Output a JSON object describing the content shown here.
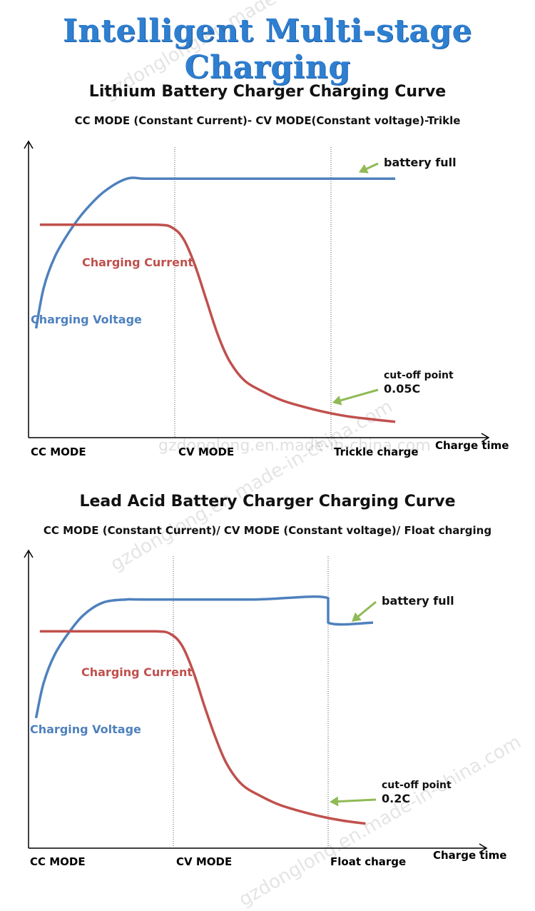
{
  "main_title": "Intelligent Multi-stage Charging",
  "watermark": "gzdonglong.en.made-in-china.com",
  "colors": {
    "voltage": "#4f81bd",
    "current": "#c0504d",
    "arrow": "#8fba55",
    "title": "#2f7fd0"
  },
  "chart_data": [
    {
      "type": "line",
      "title": "Lithium Battery Charger Charging Curve",
      "subtitle": "CC MODE (Constant Current)- CV MODE(Constant voltage)-Trikle",
      "xlabel": "Charge time",
      "phases": [
        "CC MODE",
        "CV MODE",
        "Trickle charge"
      ],
      "series": [
        {
          "name": "Charging Voltage",
          "color": "#4f81bd",
          "points": [
            [
              0.02,
              0.62
            ],
            [
              0.04,
              0.48
            ],
            [
              0.07,
              0.37
            ],
            [
              0.11,
              0.28
            ],
            [
              0.15,
              0.21
            ],
            [
              0.2,
              0.145
            ],
            [
              0.26,
              0.1
            ],
            [
              0.31,
              0.1
            ],
            [
              0.4,
              0.1
            ],
            [
              0.6,
              0.1
            ],
            [
              0.8,
              0.1
            ],
            [
              0.97,
              0.1
            ]
          ]
        },
        {
          "name": "Charging Current",
          "color": "#c0504d",
          "points": [
            [
              0.03,
              0.26
            ],
            [
              0.2,
              0.26
            ],
            [
              0.34,
              0.26
            ],
            [
              0.38,
              0.27
            ],
            [
              0.41,
              0.31
            ],
            [
              0.44,
              0.4
            ],
            [
              0.47,
              0.52
            ],
            [
              0.5,
              0.64
            ],
            [
              0.53,
              0.73
            ],
            [
              0.57,
              0.8
            ],
            [
              0.62,
              0.84
            ],
            [
              0.67,
              0.87
            ],
            [
              0.72,
              0.89
            ],
            [
              0.78,
              0.91
            ],
            [
              0.84,
              0.925
            ],
            [
              0.9,
              0.935
            ],
            [
              0.97,
              0.945
            ]
          ]
        }
      ],
      "annotations": [
        {
          "lines": [
            "battery full"
          ],
          "target": [
            0.87,
            0.08
          ]
        },
        {
          "lines": [
            "cut-off point",
            "0.05C"
          ],
          "target": [
            0.8,
            0.88
          ]
        }
      ]
    },
    {
      "type": "line",
      "title": "Lead Acid Battery Charger Charging Curve",
      "subtitle": "CC MODE (Constant Current)/ CV MODE (Constant voltage)/ Float charging",
      "xlabel": "Charge time",
      "phases": [
        "CC MODE",
        "CV MODE",
        "Float charge"
      ],
      "series": [
        {
          "name": "Charging Voltage",
          "color": "#4f81bd",
          "points": [
            [
              0.02,
              0.55
            ],
            [
              0.04,
              0.43
            ],
            [
              0.07,
              0.33
            ],
            [
              0.11,
              0.25
            ],
            [
              0.15,
              0.19
            ],
            [
              0.2,
              0.15
            ],
            [
              0.26,
              0.14
            ],
            [
              0.31,
              0.14
            ],
            [
              0.6,
              0.14
            ],
            [
              0.8,
              0.135
            ],
            [
              0.8,
              0.22
            ],
            [
              0.92,
              0.22
            ]
          ]
        },
        {
          "name": "Charging Current",
          "color": "#c0504d",
          "points": [
            [
              0.03,
              0.25
            ],
            [
              0.2,
              0.25
            ],
            [
              0.34,
              0.25
            ],
            [
              0.38,
              0.26
            ],
            [
              0.41,
              0.3
            ],
            [
              0.44,
              0.39
            ],
            [
              0.47,
              0.51
            ],
            [
              0.5,
              0.62
            ],
            [
              0.53,
              0.71
            ],
            [
              0.57,
              0.78
            ],
            [
              0.62,
              0.82
            ],
            [
              0.67,
              0.85
            ],
            [
              0.72,
              0.87
            ],
            [
              0.78,
              0.89
            ],
            [
              0.84,
              0.905
            ],
            [
              0.9,
              0.915
            ]
          ]
        }
      ],
      "annotations": [
        {
          "lines": [
            "battery full"
          ],
          "target": [
            0.86,
            0.22
          ]
        },
        {
          "lines": [
            "cut-off point",
            "0.2C"
          ],
          "target": [
            0.8,
            0.84
          ]
        }
      ]
    }
  ]
}
